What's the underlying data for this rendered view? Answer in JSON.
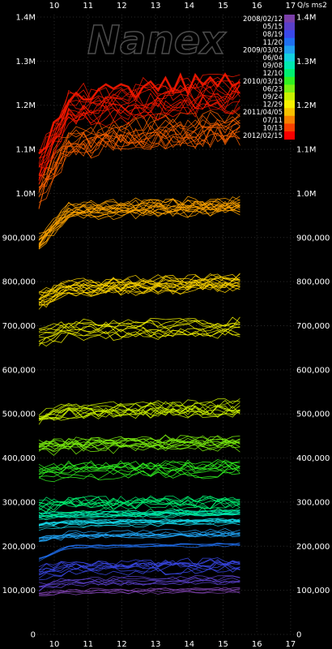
{
  "chart_data": {
    "type": "line",
    "watermark": "Nanex",
    "unit_label": "Q/s ms2",
    "x": {
      "ticks": [
        "10",
        "11",
        "12",
        "13",
        "14",
        "15",
        "16",
        "17"
      ],
      "data_end": "15.5"
    },
    "y": {
      "ylim": [
        0,
        1400000
      ],
      "ticks": [
        {
          "value": 0,
          "label": "0"
        },
        {
          "value": 100000,
          "label": "100,000"
        },
        {
          "value": 200000,
          "label": "200,000"
        },
        {
          "value": 300000,
          "label": "300,000"
        },
        {
          "value": 400000,
          "label": "400,000"
        },
        {
          "value": 500000,
          "label": "500,000"
        },
        {
          "value": 600000,
          "label": "600,000"
        },
        {
          "value": 700000,
          "label": "700,000"
        },
        {
          "value": 800000,
          "label": "800,000"
        },
        {
          "value": 900000,
          "label": "900,000"
        },
        {
          "value": 1000000,
          "label": "1.0M"
        },
        {
          "value": 1100000,
          "label": "1.1M"
        },
        {
          "value": 1200000,
          "label": "1.2M"
        },
        {
          "value": 1300000,
          "label": "1.3M"
        },
        {
          "value": 1400000,
          "label": "1.4M"
        }
      ]
    },
    "legend": {
      "placement": "top-right, inside colorbar",
      "entries": [
        "2008/02/12",
        "05/15",
        "08/19",
        "11/20",
        "2009/03/03",
        "06/04",
        "09/08",
        "12/10",
        "2010/03/19",
        "06/23",
        "09/24",
        "12/29",
        "2011/04/05",
        "07/11",
        "10/13",
        "2012/02/15"
      ],
      "colors": [
        "#7a3fa8",
        "#5a3fc8",
        "#3a48e8",
        "#1f6ff0",
        "#1fa0f0",
        "#14d0e0",
        "#00e8b0",
        "#00f070",
        "#30f020",
        "#7af010",
        "#c8f000",
        "#f8f000",
        "#f8c000",
        "#f88000",
        "#f84000",
        "#f80000"
      ]
    },
    "series_bands": [
      {
        "period": "2008/02/12",
        "color": "#7a3fa8",
        "level": 95000,
        "spread": 8000,
        "count": 5,
        "opening_level": 90000
      },
      {
        "period": "05/15",
        "color": "#5a3fc8",
        "level": 120000,
        "spread": 12000,
        "count": 6,
        "opening_level": 110000
      },
      {
        "period": "08/19",
        "color": "#3a48e8",
        "level": 150000,
        "spread": 20000,
        "count": 9,
        "opening_level": 140000
      },
      {
        "period": "11/20",
        "color": "#1f6ff0",
        "level": 198000,
        "spread": 5000,
        "count": 4,
        "opening_level": 170000
      },
      {
        "period": "2009/03/03",
        "color": "#1fa0f0",
        "level": 225000,
        "spread": 12000,
        "count": 8,
        "opening_level": 215000
      },
      {
        "period": "06/04",
        "color": "#14d0e0",
        "level": 250000,
        "spread": 10000,
        "count": 10,
        "opening_level": 245000
      },
      {
        "period": "09/08",
        "color": "#00e8b0",
        "level": 270000,
        "spread": 10000,
        "count": 10,
        "opening_level": 268000
      },
      {
        "period": "12/10",
        "color": "#00f070",
        "level": 290000,
        "spread": 25000,
        "count": 10,
        "opening_level": 285000
      },
      {
        "period": "2010/03/19",
        "color": "#30f020",
        "level": 370000,
        "spread": 25000,
        "count": 10,
        "opening_level": 365000
      },
      {
        "period": "06/23",
        "color": "#7af010",
        "level": 430000,
        "spread": 22000,
        "count": 12,
        "opening_level": 425000
      },
      {
        "period": "09/24",
        "color": "#c8f000",
        "level": 510000,
        "spread": 25000,
        "count": 12,
        "opening_level": 495000
      },
      {
        "period": "12/29",
        "color": "#f0f000",
        "level": 690000,
        "spread": 25000,
        "count": 10,
        "opening_level": 675000
      },
      {
        "period": "2011/04/05",
        "color": "#f8d000",
        "level": 785000,
        "spread": 25000,
        "count": 16,
        "opening_level": 760000
      },
      {
        "period": "07/11",
        "color": "#f8a000",
        "level": 960000,
        "spread": 25000,
        "count": 16,
        "opening_level": 890000
      },
      {
        "period": "10/13",
        "color": "#f86000",
        "level": 1110000,
        "spread": 50000,
        "count": 14,
        "opening_level": 1000000
      },
      {
        "period": "2012/02/15",
        "color": "#f81800",
        "level": 1190000,
        "spread": 50000,
        "count": 16,
        "opening_level": 1060000
      }
    ]
  }
}
